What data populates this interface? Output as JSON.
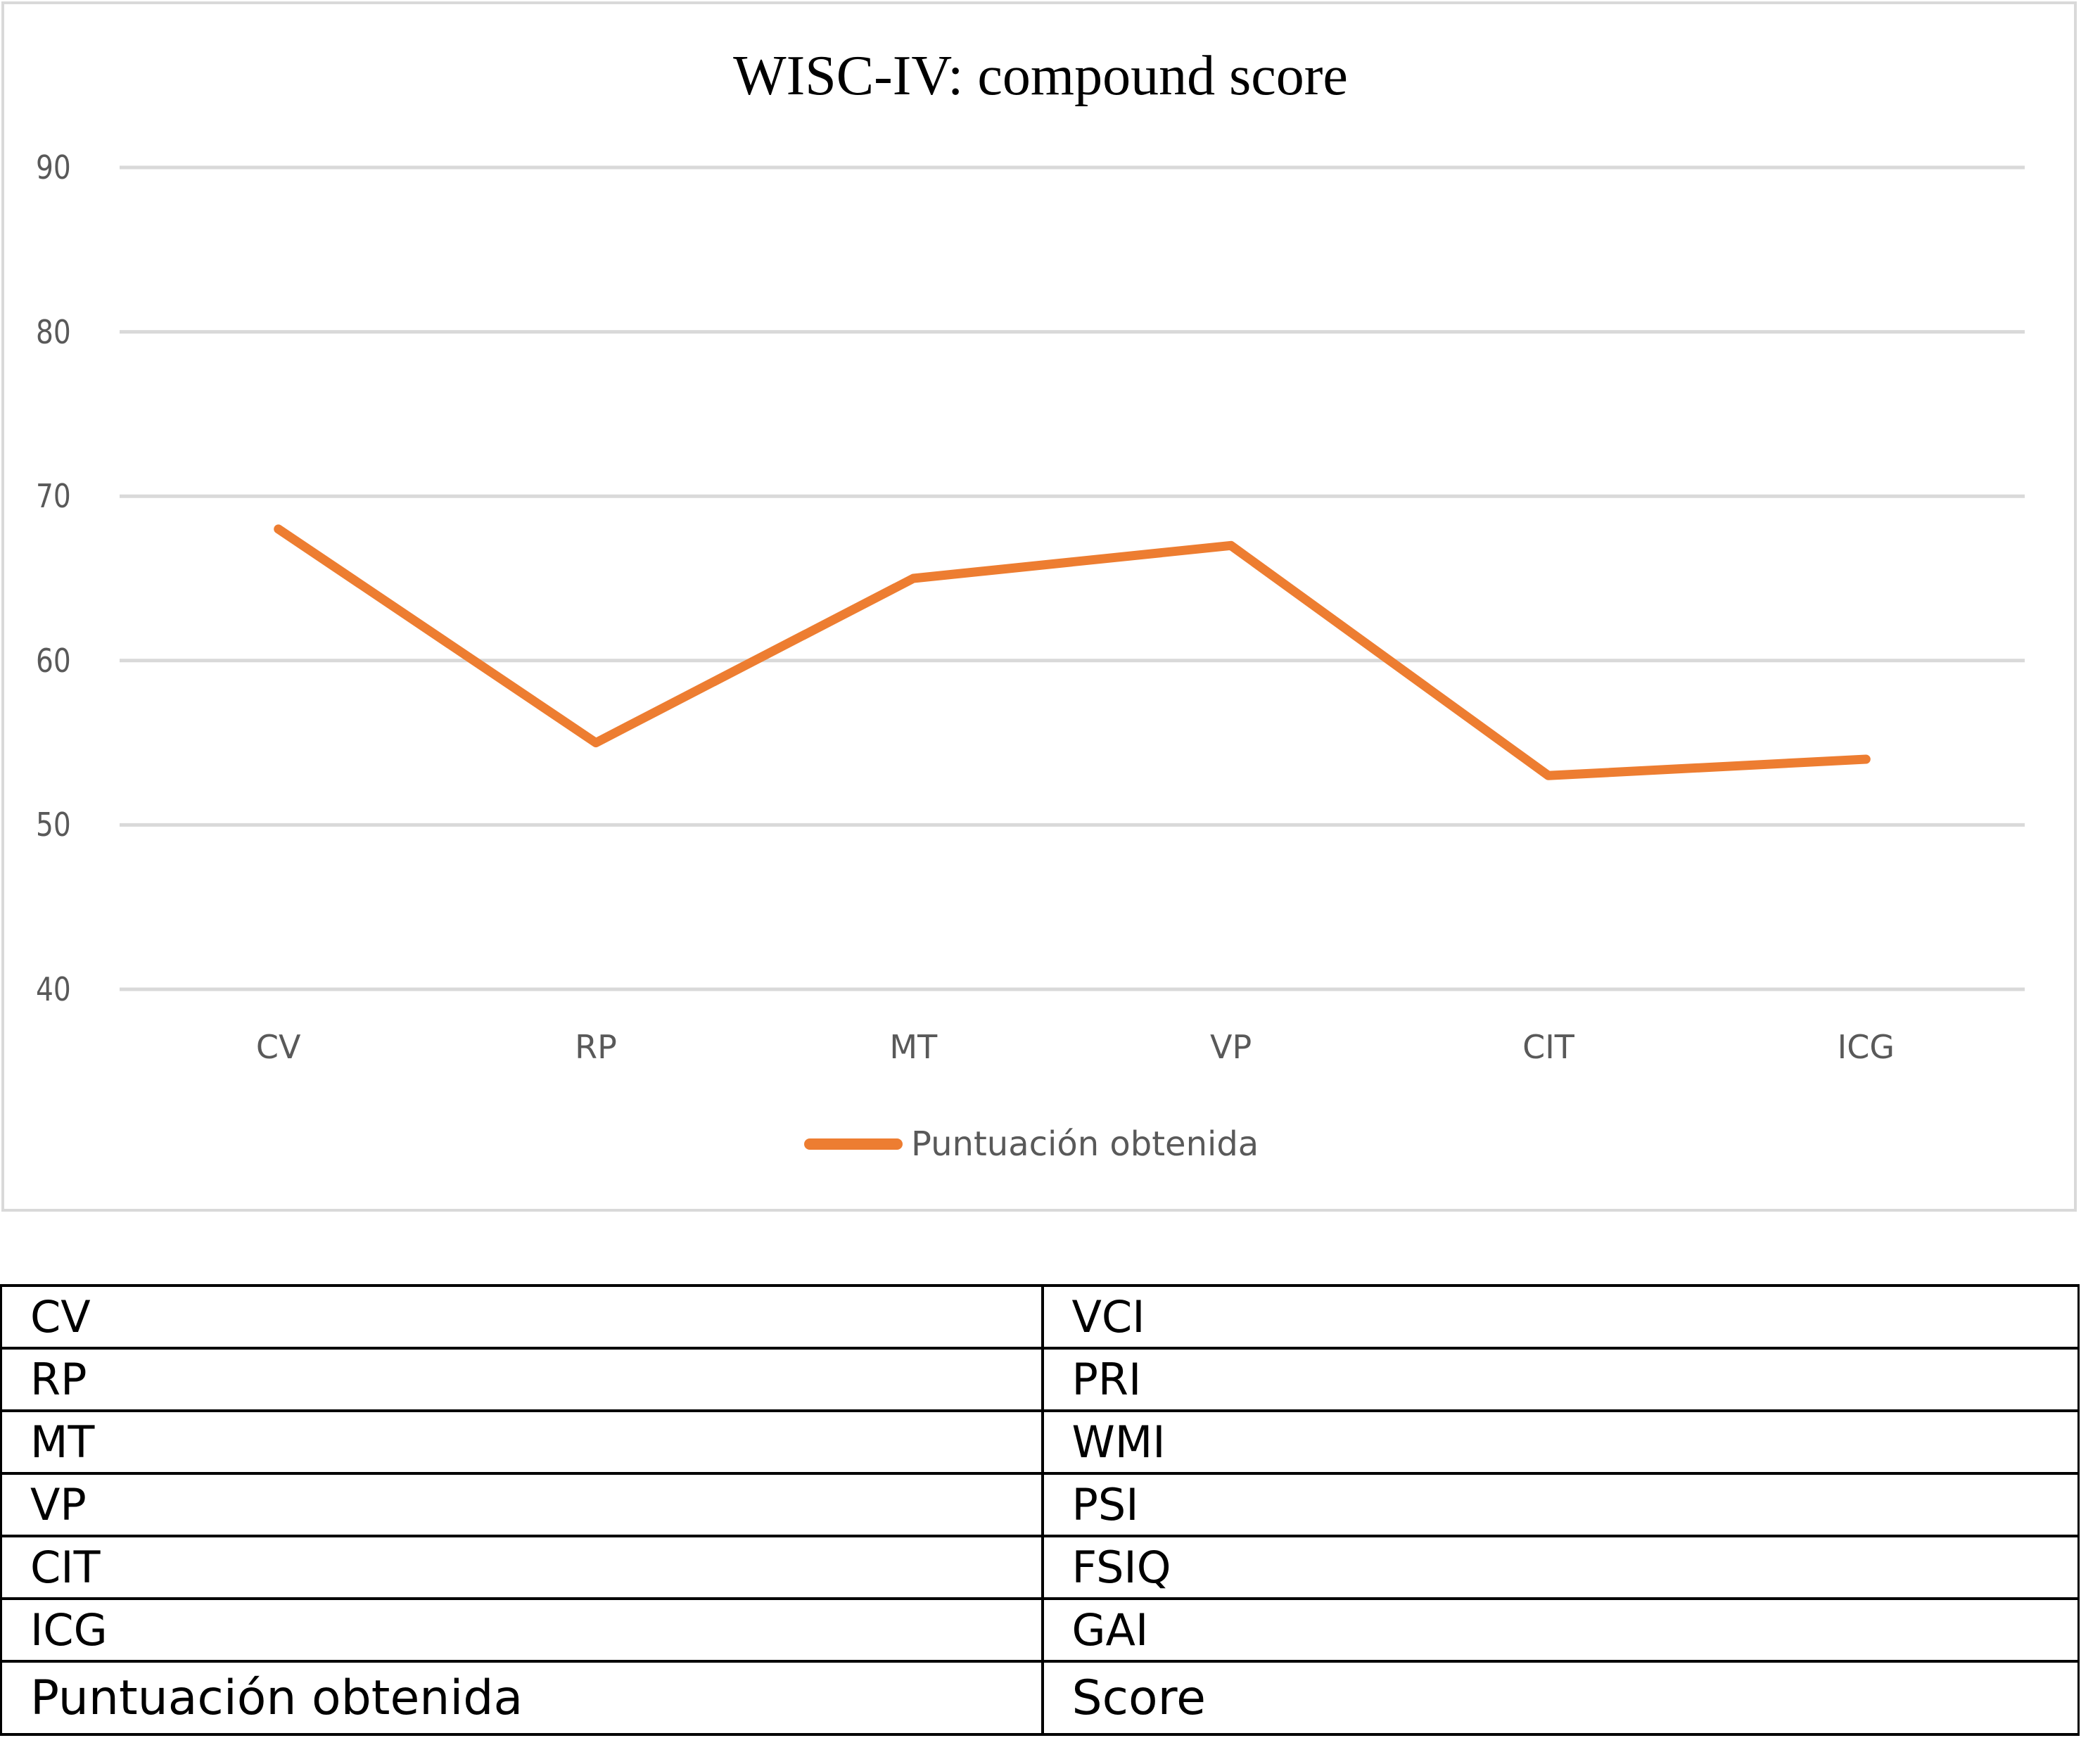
{
  "chart_data": {
    "type": "line",
    "title": "WISC-IV: compound score",
    "xlabel": "",
    "ylabel": "",
    "categories": [
      "CV",
      "RP",
      "MT",
      "VP",
      "CIT",
      "ICG"
    ],
    "series": [
      {
        "name": "Puntuación obtenida",
        "color": "#ed7d31",
        "values": [
          68,
          55,
          65,
          67,
          53,
          54
        ]
      }
    ],
    "ylim": [
      40,
      90
    ],
    "yticks": [
      90,
      80,
      70,
      60,
      50,
      40
    ],
    "grid": true,
    "legend_position": "bottom"
  },
  "colors": {
    "series": "#ed7d31",
    "gridline": "#d9d9d9",
    "tick_text": "#595959"
  },
  "abbreviation_table": {
    "rows": [
      {
        "spanish": "CV",
        "english": "VCI"
      },
      {
        "spanish": "RP",
        "english": "PRI"
      },
      {
        "spanish": "MT",
        "english": "WMI"
      },
      {
        "spanish": "VP",
        "english": "PSI"
      },
      {
        "spanish": "CIT",
        "english": "FSIQ"
      },
      {
        "spanish": "ICG",
        "english": "GAI"
      },
      {
        "spanish": "Puntuación obtenida",
        "english": "Score"
      }
    ]
  }
}
